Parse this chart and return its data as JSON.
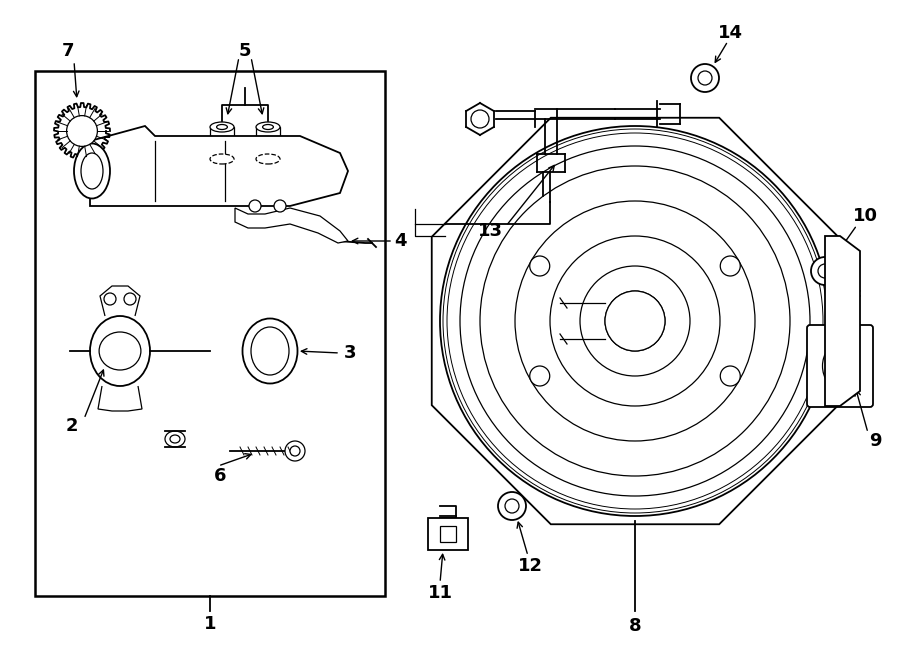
{
  "background_color": "#ffffff",
  "line_color": "#000000",
  "fig_width": 9.0,
  "fig_height": 6.61,
  "dpi": 100,
  "label_fontsize": 13,
  "label_bold": true
}
